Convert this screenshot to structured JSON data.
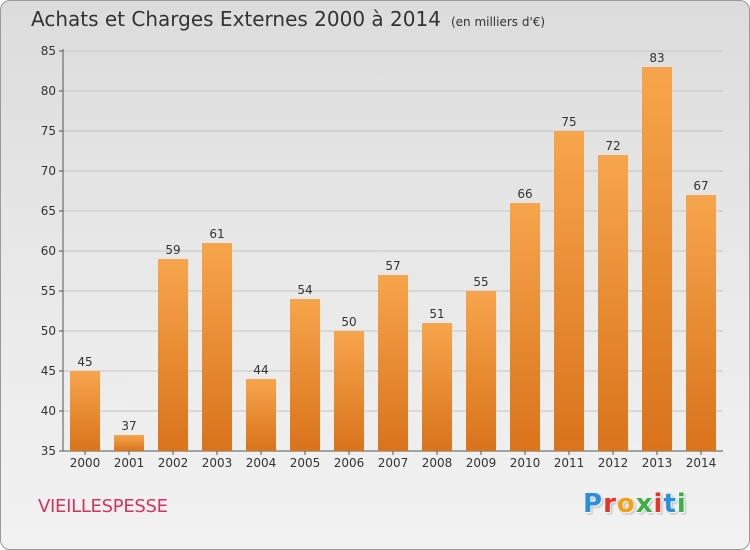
{
  "header": {
    "title": "Achats et Charges Externes 2000 à 2014",
    "subtitle": "(en milliers d'€)"
  },
  "footer": {
    "location": "VIEILLESPESSE",
    "logo_letters": [
      "P",
      "r",
      "o",
      "x",
      "i",
      "t",
      "i"
    ],
    "logo_colors": [
      "#2b8fd9",
      "#e8332a",
      "#f3a019",
      "#3fae49",
      "#e8332a",
      "#2b8fd9",
      "#3fae49"
    ]
  },
  "chart_data": {
    "type": "bar",
    "title": "Achats et Charges Externes 2000 à 2014",
    "subtitle": "(en milliers d'€)",
    "categories": [
      "2000",
      "2001",
      "2002",
      "2003",
      "2004",
      "2005",
      "2006",
      "2007",
      "2008",
      "2009",
      "2010",
      "2011",
      "2012",
      "2013",
      "2014"
    ],
    "values": [
      45,
      37,
      59,
      61,
      44,
      54,
      50,
      57,
      51,
      55,
      66,
      75,
      72,
      83,
      67
    ],
    "xlabel": "",
    "ylabel": "",
    "ylim": [
      35,
      85
    ],
    "yticks": [
      35,
      40,
      45,
      50,
      55,
      60,
      65,
      70,
      75,
      80,
      85
    ],
    "grid": true,
    "bar_color_top": "#f7a54c",
    "bar_color_bottom": "#d9731c"
  }
}
